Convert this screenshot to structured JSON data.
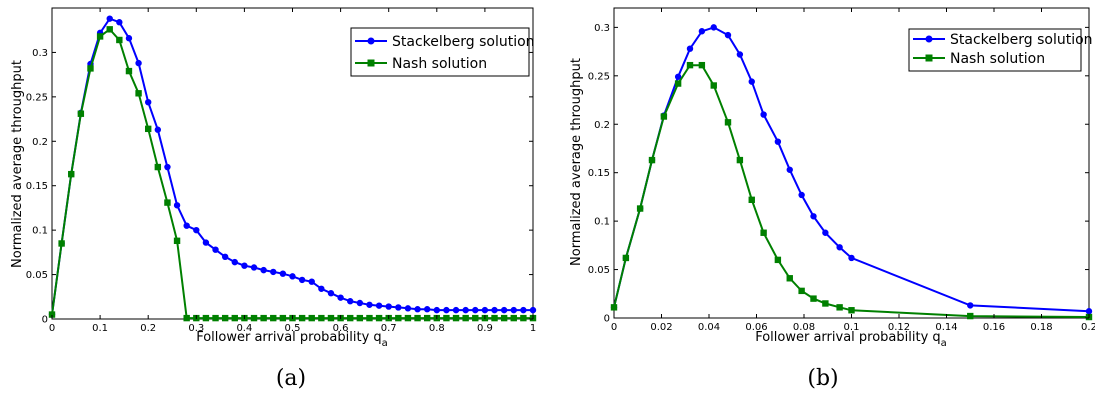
{
  "chart_data": [
    {
      "type": "line",
      "caption": "(a)",
      "xlabel": "Follower arrival probability q",
      "xlabel_subscript": "a",
      "ylabel": "Normalized average throughput",
      "xlim": [
        0,
        1
      ],
      "ylim": [
        0,
        0.35
      ],
      "xticks": [
        "0",
        "0.1",
        "0.2",
        "0.3",
        "0.4",
        "0.5",
        "0.6",
        "0.7",
        "0.8",
        "0.9",
        "1"
      ],
      "yticks": [
        "0",
        "0.05",
        "0.1",
        "0.15",
        "0.2",
        "0.25",
        "0.3"
      ],
      "grid": false,
      "legend_position": "top-right",
      "series": [
        {
          "name": "Stackelberg solution",
          "color": "#0000ff",
          "marker": "circle",
          "x": [
            0,
            0.02,
            0.04,
            0.06,
            0.08,
            0.1,
            0.12,
            0.14,
            0.16,
            0.18,
            0.2,
            0.22,
            0.24,
            0.26,
            0.28,
            0.3,
            0.32,
            0.34,
            0.36,
            0.38,
            0.4,
            0.42,
            0.44,
            0.46,
            0.48,
            0.5,
            0.52,
            0.54,
            0.56,
            0.58,
            0.6,
            0.62,
            0.64,
            0.66,
            0.68,
            0.7,
            0.72,
            0.74,
            0.76,
            0.78,
            0.8,
            0.82,
            0.84,
            0.86,
            0.88,
            0.9,
            0.92,
            0.94,
            0.96,
            0.98,
            1.0
          ],
          "y": [
            0.005,
            0.085,
            0.163,
            0.232,
            0.287,
            0.322,
            0.338,
            0.334,
            0.316,
            0.288,
            0.244,
            0.213,
            0.171,
            0.128,
            0.105,
            0.1,
            0.086,
            0.078,
            0.07,
            0.064,
            0.06,
            0.058,
            0.055,
            0.053,
            0.051,
            0.048,
            0.044,
            0.042,
            0.034,
            0.029,
            0.024,
            0.02,
            0.018,
            0.016,
            0.015,
            0.014,
            0.013,
            0.012,
            0.011,
            0.011,
            0.01,
            0.01,
            0.01,
            0.01,
            0.01,
            0.01,
            0.01,
            0.01,
            0.01,
            0.01,
            0.01
          ]
        },
        {
          "name": "Nash solution",
          "color": "#008000",
          "marker": "square",
          "x": [
            0,
            0.02,
            0.04,
            0.06,
            0.08,
            0.1,
            0.12,
            0.14,
            0.16,
            0.18,
            0.2,
            0.22,
            0.24,
            0.26,
            0.28,
            0.3,
            0.32,
            0.34,
            0.36,
            0.38,
            0.4,
            0.42,
            0.44,
            0.46,
            0.48,
            0.5,
            0.52,
            0.54,
            0.56,
            0.58,
            0.6,
            0.62,
            0.64,
            0.66,
            0.68,
            0.7,
            0.72,
            0.74,
            0.76,
            0.78,
            0.8,
            0.82,
            0.84,
            0.86,
            0.88,
            0.9,
            0.92,
            0.94,
            0.96,
            0.98,
            1.0
          ],
          "y": [
            0.005,
            0.085,
            0.163,
            0.231,
            0.282,
            0.318,
            0.326,
            0.314,
            0.279,
            0.254,
            0.214,
            0.171,
            0.131,
            0.088,
            0.001,
            0.001,
            0.001,
            0.001,
            0.001,
            0.001,
            0.001,
            0.001,
            0.001,
            0.001,
            0.001,
            0.001,
            0.001,
            0.001,
            0.001,
            0.001,
            0.001,
            0.001,
            0.001,
            0.001,
            0.001,
            0.001,
            0.001,
            0.001,
            0.001,
            0.001,
            0.001,
            0.001,
            0.001,
            0.001,
            0.001,
            0.001,
            0.001,
            0.001,
            0.001,
            0.001,
            0.001
          ]
        }
      ]
    },
    {
      "type": "line",
      "caption": "(b)",
      "xlabel": "Follower arrival probability q",
      "xlabel_subscript": "a",
      "ylabel": "Normalized average throughput",
      "xlim": [
        0,
        0.2
      ],
      "ylim": [
        0,
        0.32
      ],
      "xticks": [
        "0",
        "0.02",
        "0.04",
        "0.06",
        "0.08",
        "0.1",
        "0.12",
        "0.14",
        "0.16",
        "0.18",
        "0.2"
      ],
      "yticks": [
        "0",
        "0.05",
        "0.1",
        "0.15",
        "0.2",
        "0.25",
        "0.3"
      ],
      "grid": false,
      "legend_position": "top-right",
      "series": [
        {
          "name": "Stackelberg solution",
          "color": "#0000ff",
          "marker": "circle",
          "x": [
            0.0,
            0.005,
            0.011,
            0.016,
            0.021,
            0.027,
            0.032,
            0.037,
            0.042,
            0.048,
            0.053,
            0.058,
            0.063,
            0.069,
            0.074,
            0.079,
            0.084,
            0.089,
            0.095,
            0.1,
            0.15,
            0.2
          ],
          "y": [
            0.011,
            0.062,
            0.113,
            0.163,
            0.209,
            0.249,
            0.278,
            0.296,
            0.3,
            0.292,
            0.272,
            0.244,
            0.21,
            0.182,
            0.153,
            0.127,
            0.105,
            0.088,
            0.073,
            0.062,
            0.013,
            0.007
          ]
        },
        {
          "name": "Nash solution",
          "color": "#008000",
          "marker": "square",
          "x": [
            0.0,
            0.005,
            0.011,
            0.016,
            0.021,
            0.027,
            0.032,
            0.037,
            0.042,
            0.048,
            0.053,
            0.058,
            0.063,
            0.069,
            0.074,
            0.079,
            0.084,
            0.089,
            0.095,
            0.1,
            0.15,
            0.2
          ],
          "y": [
            0.011,
            0.062,
            0.113,
            0.163,
            0.208,
            0.242,
            0.261,
            0.261,
            0.24,
            0.202,
            0.163,
            0.122,
            0.088,
            0.06,
            0.041,
            0.028,
            0.02,
            0.015,
            0.011,
            0.008,
            0.002,
            0.001
          ]
        }
      ]
    }
  ]
}
